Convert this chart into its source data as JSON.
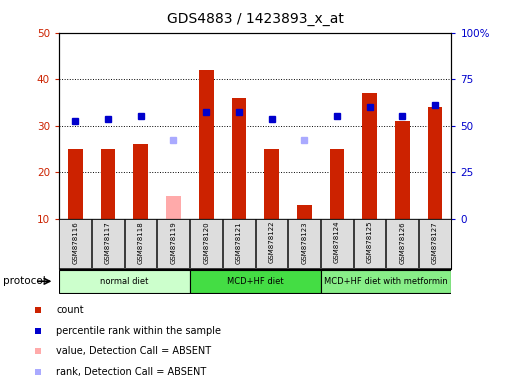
{
  "title": "GDS4883 / 1423893_x_at",
  "samples": [
    "GSM878116",
    "GSM878117",
    "GSM878118",
    "GSM878119",
    "GSM878120",
    "GSM878121",
    "GSM878122",
    "GSM878123",
    "GSM878124",
    "GSM878125",
    "GSM878126",
    "GSM878127"
  ],
  "bar_values": [
    25,
    25,
    26,
    null,
    42,
    36,
    25,
    13,
    25,
    37,
    31,
    34
  ],
  "bar_absent_values": [
    null,
    null,
    null,
    15,
    null,
    null,
    null,
    null,
    null,
    null,
    null,
    null
  ],
  "bar_color": "#cc2200",
  "bar_absent_color": "#ffaaaa",
  "dot_values": [
    31,
    31.5,
    32,
    null,
    33,
    33,
    31.5,
    null,
    32,
    34,
    32,
    34.5
  ],
  "dot_absent_values": [
    null,
    null,
    null,
    27,
    null,
    null,
    null,
    27,
    null,
    null,
    null,
    null
  ],
  "dot_color": "#0000cc",
  "dot_absent_color": "#aaaaff",
  "ylim_left": [
    10,
    50
  ],
  "ylim_right": [
    0,
    100
  ],
  "yticks_left": [
    10,
    20,
    30,
    40,
    50
  ],
  "yticks_right": [
    0,
    25,
    50,
    75,
    100
  ],
  "ytick_labels_right": [
    "0",
    "25",
    "50",
    "75",
    "100%"
  ],
  "left_tick_color": "#cc2200",
  "right_tick_color": "#0000cc",
  "grid_values": [
    20,
    30,
    40
  ],
  "protocols": [
    {
      "label": "normal diet",
      "start": 0,
      "end": 4,
      "color": "#ccffcc"
    },
    {
      "label": "MCD+HF diet",
      "start": 4,
      "end": 8,
      "color": "#44dd44"
    },
    {
      "label": "MCD+HF diet with metformin",
      "start": 8,
      "end": 12,
      "color": "#88ee88"
    }
  ],
  "protocol_label": "protocol",
  "legend_items": [
    {
      "label": "count",
      "color": "#cc2200"
    },
    {
      "label": "percentile rank within the sample",
      "color": "#0000cc"
    },
    {
      "label": "value, Detection Call = ABSENT",
      "color": "#ffaaaa"
    },
    {
      "label": "rank, Detection Call = ABSENT",
      "color": "#aaaaff"
    }
  ],
  "bg_color": "#ffffff",
  "bar_width": 0.45
}
